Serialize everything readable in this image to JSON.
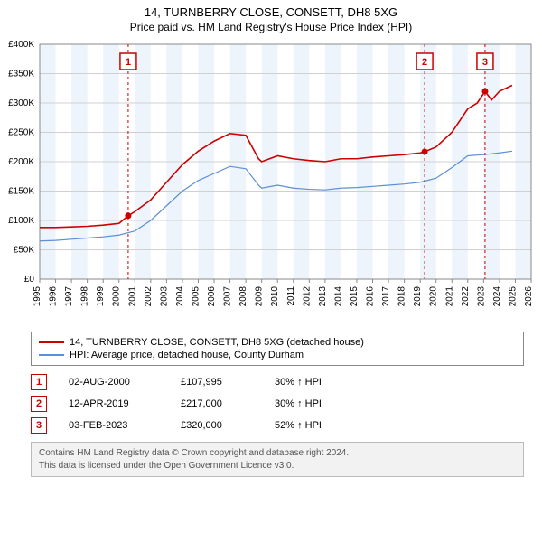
{
  "title": "14, TURNBERRY CLOSE, CONSETT, DH8 5XG",
  "subtitle": "Price paid vs. HM Land Registry's House Price Index (HPI)",
  "chart": {
    "type": "line",
    "background_color": "#ffffff",
    "shaded_color": "#eef4fb",
    "grid_color": "#d0d0d0",
    "xlim": [
      1995,
      2026
    ],
    "ylim": [
      0,
      400000
    ],
    "ytick_step": 50000,
    "yticks_labels": [
      "£0",
      "£50K",
      "£100K",
      "£150K",
      "£200K",
      "£250K",
      "£300K",
      "£350K",
      "£400K"
    ],
    "xticks": [
      1995,
      1996,
      1997,
      1998,
      1999,
      2000,
      2001,
      2002,
      2003,
      2004,
      2005,
      2006,
      2007,
      2008,
      2009,
      2010,
      2011,
      2012,
      2013,
      2014,
      2015,
      2016,
      2017,
      2018,
      2019,
      2020,
      2021,
      2022,
      2023,
      2024,
      2025,
      2026
    ],
    "shaded_alt_start": 1995,
    "series": [
      {
        "name": "property",
        "label": "14, TURNBERRY CLOSE, CONSETT, DH8 5XG (detached house)",
        "color": "#cc0000",
        "width": 1.6,
        "data": [
          [
            1995,
            88000
          ],
          [
            1996,
            88000
          ],
          [
            1997,
            89000
          ],
          [
            1998,
            90000
          ],
          [
            1999,
            92000
          ],
          [
            2000,
            95000
          ],
          [
            2000.58,
            107995
          ],
          [
            2001,
            115000
          ],
          [
            2002,
            135000
          ],
          [
            2003,
            165000
          ],
          [
            2004,
            195000
          ],
          [
            2005,
            218000
          ],
          [
            2006,
            235000
          ],
          [
            2007,
            248000
          ],
          [
            2008,
            245000
          ],
          [
            2008.8,
            205000
          ],
          [
            2009,
            200000
          ],
          [
            2010,
            210000
          ],
          [
            2011,
            205000
          ],
          [
            2012,
            202000
          ],
          [
            2013,
            200000
          ],
          [
            2014,
            205000
          ],
          [
            2015,
            205000
          ],
          [
            2016,
            208000
          ],
          [
            2017,
            210000
          ],
          [
            2018,
            212000
          ],
          [
            2019,
            215000
          ],
          [
            2019.28,
            217000
          ],
          [
            2020,
            225000
          ],
          [
            2021,
            250000
          ],
          [
            2022,
            290000
          ],
          [
            2022.6,
            300000
          ],
          [
            2023.09,
            320000
          ],
          [
            2023.5,
            305000
          ],
          [
            2024,
            320000
          ],
          [
            2024.8,
            330000
          ]
        ]
      },
      {
        "name": "hpi",
        "label": "HPI: Average price, detached house, County Durham",
        "color": "#5b8fd6",
        "width": 1.2,
        "data": [
          [
            1995,
            65000
          ],
          [
            1996,
            66000
          ],
          [
            1997,
            68000
          ],
          [
            1998,
            70000
          ],
          [
            1999,
            72000
          ],
          [
            2000,
            75000
          ],
          [
            2001,
            82000
          ],
          [
            2002,
            100000
          ],
          [
            2003,
            125000
          ],
          [
            2004,
            150000
          ],
          [
            2005,
            168000
          ],
          [
            2006,
            180000
          ],
          [
            2007,
            192000
          ],
          [
            2008,
            188000
          ],
          [
            2008.8,
            160000
          ],
          [
            2009,
            155000
          ],
          [
            2010,
            160000
          ],
          [
            2011,
            155000
          ],
          [
            2012,
            153000
          ],
          [
            2013,
            152000
          ],
          [
            2014,
            155000
          ],
          [
            2015,
            156000
          ],
          [
            2016,
            158000
          ],
          [
            2017,
            160000
          ],
          [
            2018,
            162000
          ],
          [
            2019,
            165000
          ],
          [
            2020,
            172000
          ],
          [
            2021,
            190000
          ],
          [
            2022,
            210000
          ],
          [
            2023,
            212000
          ],
          [
            2024,
            215000
          ],
          [
            2024.8,
            218000
          ]
        ]
      }
    ],
    "transactions": [
      {
        "idx": "1",
        "year": 2000.58,
        "price": 107995
      },
      {
        "idx": "2",
        "year": 2019.28,
        "price": 217000
      },
      {
        "idx": "3",
        "year": 2023.09,
        "price": 320000
      }
    ],
    "marker_line_color": "#cc0000",
    "marker_line_dash": "3,3",
    "marker_box_border": "#cc0000",
    "marker_dot_color": "#cc0000"
  },
  "legend": {
    "items": [
      {
        "color": "#cc0000",
        "label": "14, TURNBERRY CLOSE, CONSETT, DH8 5XG (detached house)"
      },
      {
        "color": "#5b8fd6",
        "label": "HPI: Average price, detached house, County Durham"
      }
    ]
  },
  "tx_rows": [
    {
      "idx": "1",
      "date": "02-AUG-2000",
      "price": "£107,995",
      "note": "30% ↑ HPI"
    },
    {
      "idx": "2",
      "date": "12-APR-2019",
      "price": "£217,000",
      "note": "30% ↑ HPI"
    },
    {
      "idx": "3",
      "date": "03-FEB-2023",
      "price": "£320,000",
      "note": "52% ↑ HPI"
    }
  ],
  "footer": {
    "line1": "Contains HM Land Registry data © Crown copyright and database right 2024.",
    "line2": "This data is licensed under the Open Government Licence v3.0."
  }
}
